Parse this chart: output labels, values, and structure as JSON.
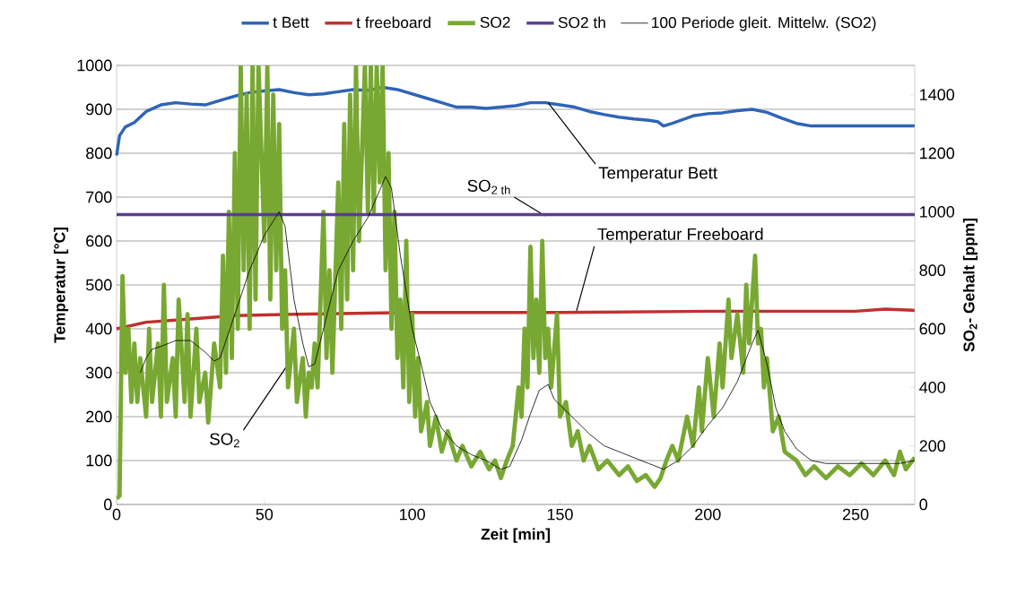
{
  "chart_data": {
    "type": "line",
    "xlabel": "Zeit [min]",
    "ylabel": "Temperatur [°C]",
    "y2label": "SO$_{2}$- Gehalt [ppm]",
    "xlim": [
      0,
      270
    ],
    "xticks": [
      0,
      50,
      100,
      150,
      200,
      250
    ],
    "ylim": [
      0,
      1000
    ],
    "yticks": [
      0,
      100,
      200,
      300,
      400,
      500,
      600,
      700,
      800,
      900,
      1000
    ],
    "y2lim": [
      0,
      1500
    ],
    "y2ticks": [
      0,
      200,
      400,
      600,
      800,
      1000,
      1200,
      1400
    ],
    "grid": "y",
    "legend": "top",
    "marker": "none",
    "line_style": "solid",
    "series": [
      {
        "name": "t Bett",
        "color": "#2f64b6",
        "axis": "y",
        "x": [
          0,
          1,
          3,
          6,
          10,
          15,
          20,
          25,
          30,
          35,
          40,
          45,
          50,
          55,
          60,
          65,
          70,
          75,
          80,
          85,
          90,
          95,
          100,
          105,
          110,
          115,
          120,
          125,
          130,
          135,
          140,
          145,
          150,
          155,
          160,
          165,
          170,
          175,
          180,
          183,
          185,
          188,
          195,
          200,
          205,
          210,
          215,
          220,
          225,
          230,
          235,
          240,
          250,
          260,
          270
        ],
        "values": [
          795,
          840,
          860,
          870,
          895,
          910,
          915,
          912,
          910,
          920,
          930,
          938,
          942,
          945,
          938,
          933,
          935,
          940,
          945,
          943,
          950,
          945,
          935,
          925,
          915,
          905,
          905,
          902,
          905,
          908,
          915,
          915,
          910,
          905,
          895,
          888,
          882,
          878,
          875,
          872,
          862,
          868,
          885,
          890,
          892,
          897,
          900,
          893,
          880,
          868,
          862,
          862,
          862,
          862,
          862
        ]
      },
      {
        "name": "t freeboard",
        "color": "#c0302f",
        "axis": "y",
        "x": [
          0,
          10,
          20,
          30,
          40,
          60,
          80,
          100,
          150,
          200,
          250,
          260,
          270
        ],
        "values": [
          400,
          415,
          420,
          425,
          430,
          433,
          435,
          437,
          437,
          440,
          440,
          445,
          442
        ]
      },
      {
        "name": "SO2",
        "color": "#78a832",
        "axis": "y2",
        "x": [
          0,
          1,
          2,
          3,
          4,
          5,
          6,
          7,
          8,
          10,
          11,
          12,
          14,
          15,
          16,
          17,
          19,
          20,
          21,
          23,
          24,
          25,
          27,
          28,
          30,
          31,
          33,
          35,
          36,
          37,
          38,
          39,
          40,
          41,
          42,
          43,
          44,
          45,
          46,
          47,
          48,
          50,
          51,
          52,
          53,
          54,
          55,
          56,
          57,
          58,
          60,
          61,
          63,
          64,
          65,
          66,
          67,
          68,
          70,
          71,
          72,
          73,
          75,
          76,
          77,
          78,
          79,
          80,
          81,
          82,
          84,
          85,
          86,
          87,
          88,
          89,
          90,
          91,
          92,
          93,
          94,
          95,
          96,
          97,
          98,
          99,
          100,
          101,
          102,
          103,
          105,
          106,
          108,
          110,
          112,
          115,
          117,
          120,
          123,
          126,
          128,
          130,
          132,
          134,
          136,
          137,
          138,
          139,
          140,
          141,
          142,
          143,
          144,
          145,
          146,
          147,
          149,
          150,
          152,
          154,
          156,
          158,
          160,
          163,
          166,
          170,
          173,
          176,
          179,
          182,
          184,
          186,
          188,
          190,
          193,
          195,
          197,
          198,
          200,
          202,
          204,
          205,
          207,
          208,
          210,
          212,
          213,
          214,
          216,
          217,
          218,
          219,
          220,
          222,
          224,
          226,
          230,
          233,
          236,
          240,
          244,
          248,
          252,
          256,
          260,
          263,
          265,
          267,
          270
        ],
        "values": [
          20,
          30,
          780,
          450,
          600,
          350,
          550,
          350,
          500,
          300,
          600,
          350,
          550,
          300,
          750,
          350,
          500,
          300,
          700,
          350,
          650,
          300,
          600,
          350,
          450,
          280,
          550,
          400,
          850,
          450,
          1000,
          500,
          1200,
          600,
          1500,
          800,
          1400,
          600,
          1500,
          700,
          1500,
          900,
          1500,
          700,
          1400,
          800,
          1300,
          600,
          800,
          400,
          600,
          350,
          500,
          300,
          450,
          400,
          550,
          400,
          1000,
          500,
          800,
          450,
          1100,
          600,
          1300,
          700,
          1400,
          800,
          1500,
          900,
          1500,
          1000,
          1500,
          1000,
          1500,
          1100,
          1500,
          800,
          1200,
          600,
          1000,
          500,
          700,
          400,
          900,
          350,
          650,
          300,
          500,
          250,
          350,
          200,
          300,
          180,
          250,
          150,
          200,
          130,
          180,
          120,
          150,
          90,
          150,
          200,
          400,
          300,
          600,
          400,
          880,
          500,
          700,
          450,
          900,
          500,
          600,
          400,
          650,
          300,
          350,
          200,
          250,
          150,
          200,
          120,
          150,
          100,
          130,
          80,
          100,
          60,
          90,
          150,
          200,
          150,
          300,
          200,
          400,
          250,
          500,
          300,
          550,
          400,
          700,
          500,
          650,
          450,
          750,
          550,
          850,
          550,
          600,
          400,
          500,
          250,
          300,
          180,
          150,
          100,
          130,
          90,
          130,
          100,
          140,
          100,
          150,
          100,
          180,
          120,
          160
        ]
      },
      {
        "name": "SO2 th",
        "color": "#5b3f8c",
        "axis": "y2",
        "x": [
          0,
          270
        ],
        "values": [
          990,
          990
        ]
      },
      {
        "name": "100 Periode gleit. Mittelw. (SO2)",
        "color": "#000000",
        "axis": "y2",
        "x": [
          8,
          10,
          12,
          15,
          20,
          25,
          30,
          33,
          35,
          40,
          45,
          50,
          55,
          57,
          60,
          63,
          65,
          67,
          70,
          75,
          80,
          85,
          88,
          91,
          93,
          96,
          100,
          103,
          106,
          110,
          115,
          120,
          125,
          130,
          133,
          137,
          140,
          143,
          146,
          148,
          150,
          155,
          160,
          165,
          170,
          175,
          180,
          185,
          190,
          195,
          200,
          205,
          210,
          215,
          217,
          220,
          223,
          226,
          230,
          235,
          240,
          250,
          260,
          265,
          270
        ],
        "values": [
          450,
          500,
          530,
          540,
          560,
          560,
          520,
          490,
          500,
          650,
          800,
          920,
          1000,
          950,
          700,
          550,
          470,
          480,
          600,
          800,
          900,
          980,
          1050,
          1120,
          1080,
          850,
          600,
          480,
          350,
          260,
          200,
          170,
          150,
          120,
          130,
          220,
          310,
          390,
          410,
          360,
          340,
          290,
          240,
          200,
          180,
          160,
          140,
          120,
          150,
          200,
          270,
          330,
          420,
          550,
          595,
          480,
          330,
          250,
          190,
          150,
          140,
          140,
          140,
          140,
          150
        ]
      }
    ],
    "annotations": [
      {
        "text": "Temperatur Bett",
        "x": 146,
        "y": 915
      },
      {
        "text": "SO$_{2 th}$",
        "x": 145,
        "y": 657
      },
      {
        "text": "Temperatur Freeboard",
        "x": 155.6,
        "y": 441
      },
      {
        "text": "SO$_{2}$",
        "x": 60.4,
        "y": 343
      }
    ]
  }
}
